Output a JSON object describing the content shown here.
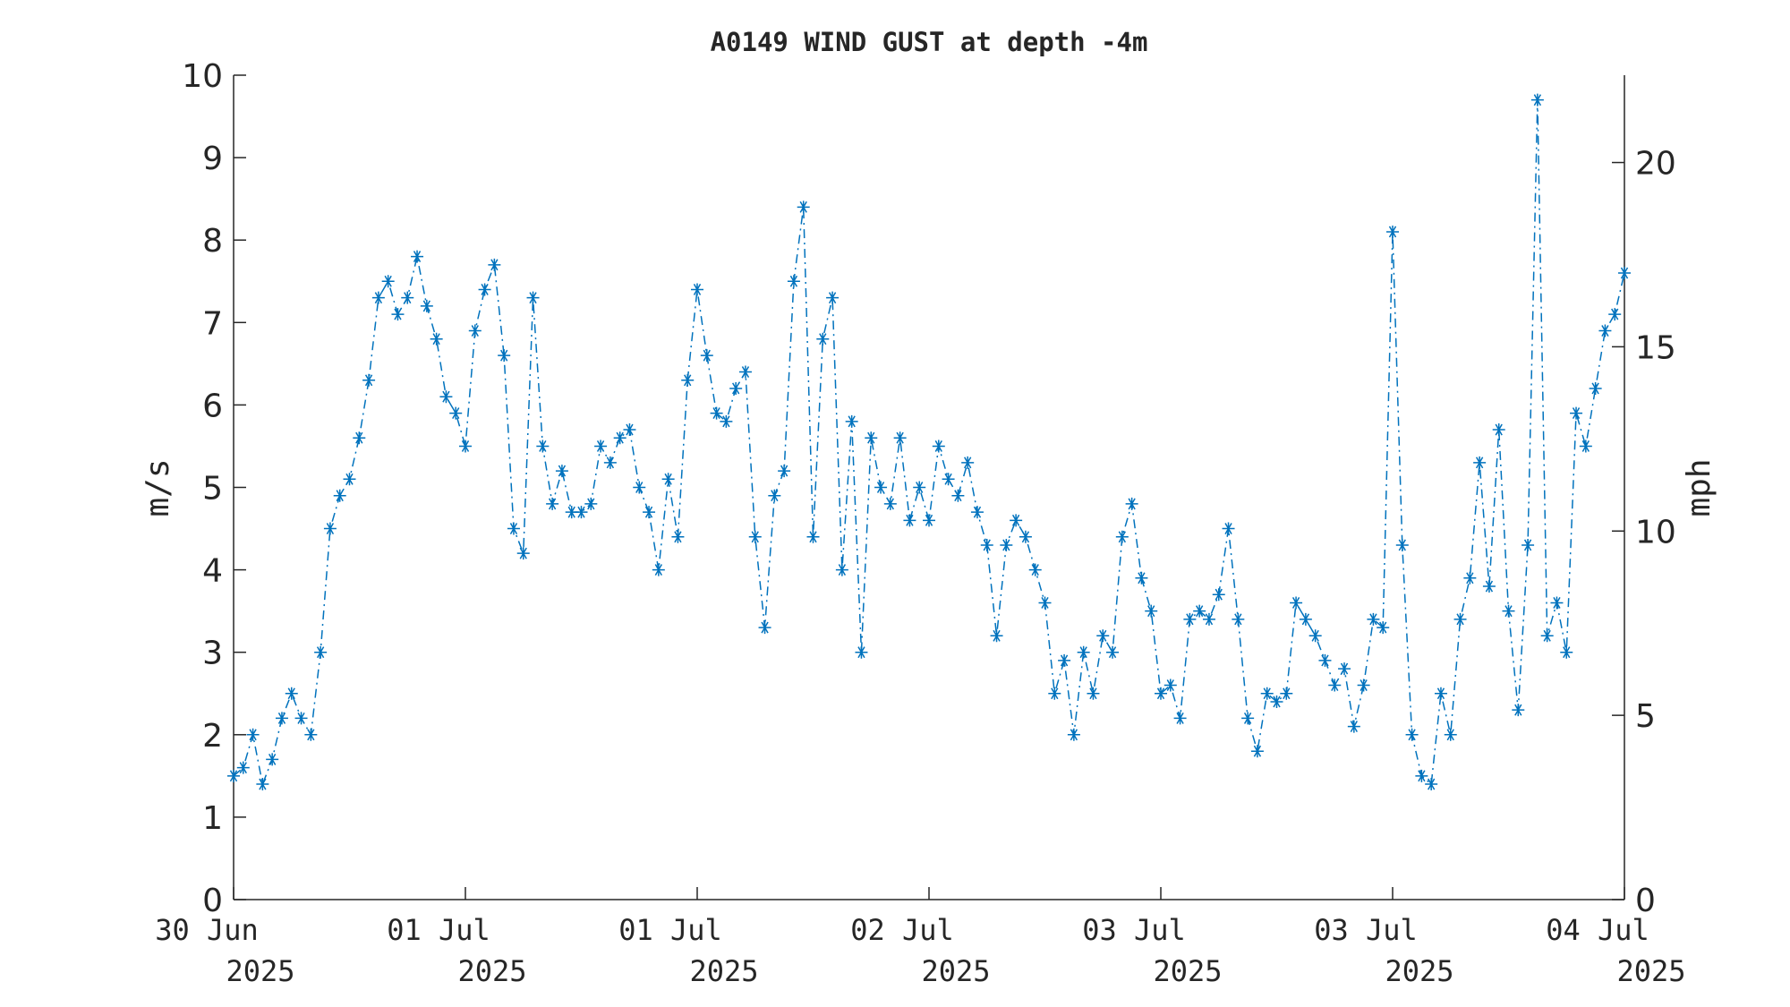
{
  "chart_data": {
    "type": "line",
    "title": "A0149 WIND GUST at depth -4m",
    "ylabel": "m/s",
    "y2label": "mph",
    "x": [
      0,
      0.5,
      1,
      1.5,
      2,
      2.5,
      3,
      3.5,
      4,
      4.5,
      5,
      5.5,
      6,
      6.5,
      7,
      7.5,
      8,
      8.5,
      9,
      9.5,
      10,
      10.5,
      11,
      11.5,
      12,
      12.5,
      13,
      13.5,
      14,
      14.5,
      15,
      15.5,
      16,
      16.5,
      17,
      17.5,
      18,
      18.5,
      19,
      19.5,
      20,
      20.5,
      21,
      21.5,
      22,
      22.5,
      23,
      23.5,
      24,
      24.5,
      25,
      25.5,
      26,
      26.5,
      27,
      27.5,
      28,
      28.5,
      29,
      29.5,
      30,
      30.5,
      31,
      31.5,
      32,
      32.5,
      33,
      33.5,
      34,
      34.5,
      35,
      35.5,
      36,
      36.5,
      37,
      37.5,
      38,
      38.5,
      39,
      39.5,
      40,
      40.5,
      41,
      41.5,
      42,
      42.5,
      43,
      43.5,
      44,
      44.5,
      45,
      45.5,
      46,
      46.5,
      47,
      47.5,
      48,
      48.5,
      49,
      49.5,
      50,
      50.5,
      51,
      51.5,
      52,
      52.5,
      53,
      53.5,
      54,
      54.5,
      55,
      55.5,
      56,
      56.5,
      57,
      57.5,
      58,
      58.5,
      59,
      59.5,
      60,
      60.5,
      61,
      61.5,
      62,
      62.5,
      63,
      63.5,
      64,
      64.5,
      65,
      65.5,
      66,
      66.5,
      67,
      67.5,
      68,
      68.5,
      69,
      69.5,
      70,
      70.5,
      71,
      71.5,
      72
    ],
    "series": [
      {
        "name": "WIND GUST",
        "color": "#0072bd",
        "values": [
          1.5,
          1.6,
          2.0,
          1.4,
          1.7,
          2.2,
          2.5,
          2.2,
          2.0,
          3.0,
          4.5,
          4.9,
          5.1,
          5.6,
          6.3,
          7.3,
          7.5,
          7.1,
          7.3,
          7.8,
          7.2,
          6.8,
          6.1,
          5.9,
          5.5,
          6.9,
          7.4,
          7.7,
          6.6,
          4.5,
          4.2,
          7.3,
          5.5,
          4.8,
          5.2,
          4.7,
          4.7,
          4.8,
          5.5,
          5.3,
          5.6,
          5.7,
          5.0,
          4.7,
          4.0,
          5.1,
          4.4,
          6.3,
          7.4,
          6.6,
          5.9,
          5.8,
          6.2,
          6.4,
          4.4,
          3.3,
          4.9,
          5.2,
          7.5,
          8.4,
          4.4,
          6.8,
          7.3,
          4.0,
          5.8,
          3.0,
          5.6,
          5.0,
          4.8,
          5.6,
          4.6,
          5.0,
          4.6,
          5.5,
          5.1,
          4.9,
          5.3,
          4.7,
          4.3,
          3.2,
          4.3,
          4.6,
          4.4,
          4.0,
          3.6,
          2.5,
          2.9,
          2.0,
          3.0,
          2.5,
          3.2,
          3.0,
          4.4,
          4.8,
          3.9,
          3.5,
          2.5,
          2.6,
          2.2,
          3.4,
          3.5,
          3.4,
          3.7,
          4.5,
          3.4,
          2.2,
          1.8,
          2.5,
          2.4,
          2.5,
          3.6,
          3.4,
          3.2,
          2.9,
          2.6,
          2.8,
          2.1,
          2.6,
          3.4,
          3.3,
          8.1,
          4.3,
          2.0,
          1.5,
          1.4,
          2.5,
          2.0,
          3.4,
          3.9,
          5.3,
          3.8,
          5.7,
          3.5,
          2.3,
          4.3,
          9.7,
          3.2,
          3.6,
          3.0,
          5.9,
          5.5,
          6.2,
          6.9,
          7.1,
          7.6
        ]
      }
    ],
    "xlim": [
      0,
      72
    ],
    "xticks": [
      {
        "value": 0,
        "label": "30 Jun\n2025"
      },
      {
        "value": 12,
        "label": "01 Jul\n2025"
      },
      {
        "value": 24,
        "label": "01 Jul\n2025"
      },
      {
        "value": 36,
        "label": "02 Jul\n2025"
      },
      {
        "value": 48,
        "label": "03 Jul\n2025"
      },
      {
        "value": 60,
        "label": "03 Jul\n2025"
      },
      {
        "value": 72,
        "label": "04 Jul\n2025"
      }
    ],
    "ylim": [
      0,
      10
    ],
    "yticks": [
      0,
      1,
      2,
      3,
      4,
      5,
      6,
      7,
      8,
      9,
      10
    ],
    "y2lim": [
      0,
      22.3694
    ],
    "y2ticks": [
      0,
      5,
      10,
      15,
      20
    ],
    "grid": false
  }
}
